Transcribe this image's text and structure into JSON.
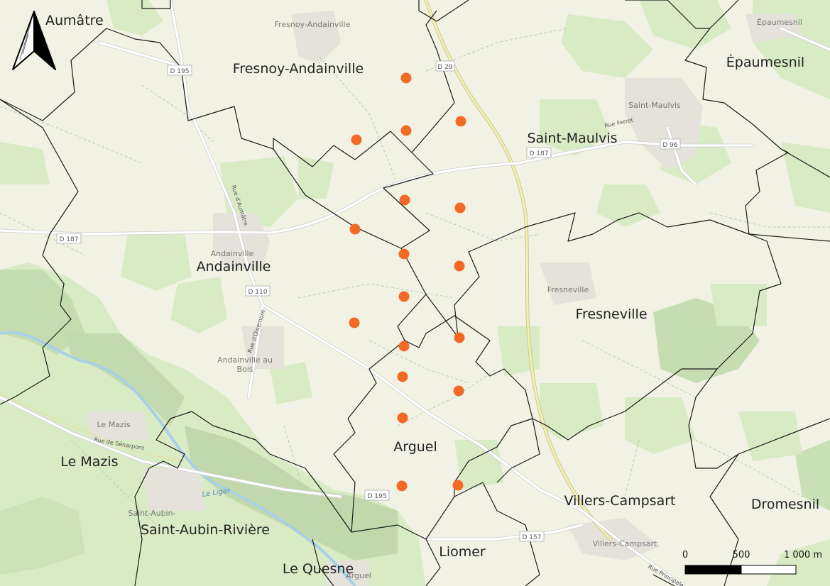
{
  "communes": [
    {
      "name": "Aumâtre"
    },
    {
      "name": "Fresnoy-Andainville"
    },
    {
      "name": "Épaumesnil"
    },
    {
      "name": "Saint-Maulvis"
    },
    {
      "name": "Andainville"
    },
    {
      "name": "Fresneville"
    },
    {
      "name": "Arguel"
    },
    {
      "name": "Le Mazis"
    },
    {
      "name": "Villers-Campsart"
    },
    {
      "name": "Dromesnil"
    },
    {
      "name": "Saint-Aubin-Rivière"
    },
    {
      "name": "Liomer"
    },
    {
      "name": "Le Quesne"
    }
  ],
  "villages": [
    "Fresnoy-Andainville",
    "Épaumesnil",
    "Saint-Maulvis",
    "Andainville",
    "Fresneville",
    "Andainville au",
    "Bois",
    "Le Mazis",
    "Saint-Aubin-",
    "Villers-Campsart",
    "Arguel"
  ],
  "roads": [
    "D 195",
    "D 29",
    "D 187",
    "D 96",
    "D 187",
    "D 110",
    "D 195",
    "D 157"
  ],
  "streets": [
    "Rue d'Aumâtre",
    "Rue Ferret",
    "Rue d'Oisemont",
    "Rue de Sénarpont",
    "Rue Principale"
  ],
  "river": "Le Liger",
  "scale_bar": {
    "labels": [
      "0",
      "500",
      "1 000 m"
    ]
  },
  "north_arrow": {
    "icon": "north-arrow-icon"
  },
  "colors": {
    "background": "#f2f2e4",
    "forest": "#c9dfb6",
    "meadow": "#d9ebc4",
    "boundary": "#1a1a1a",
    "point": "#f26a26",
    "road": "#ffffff",
    "major_road": "#f4f2a8",
    "water": "#a8d0e6"
  }
}
